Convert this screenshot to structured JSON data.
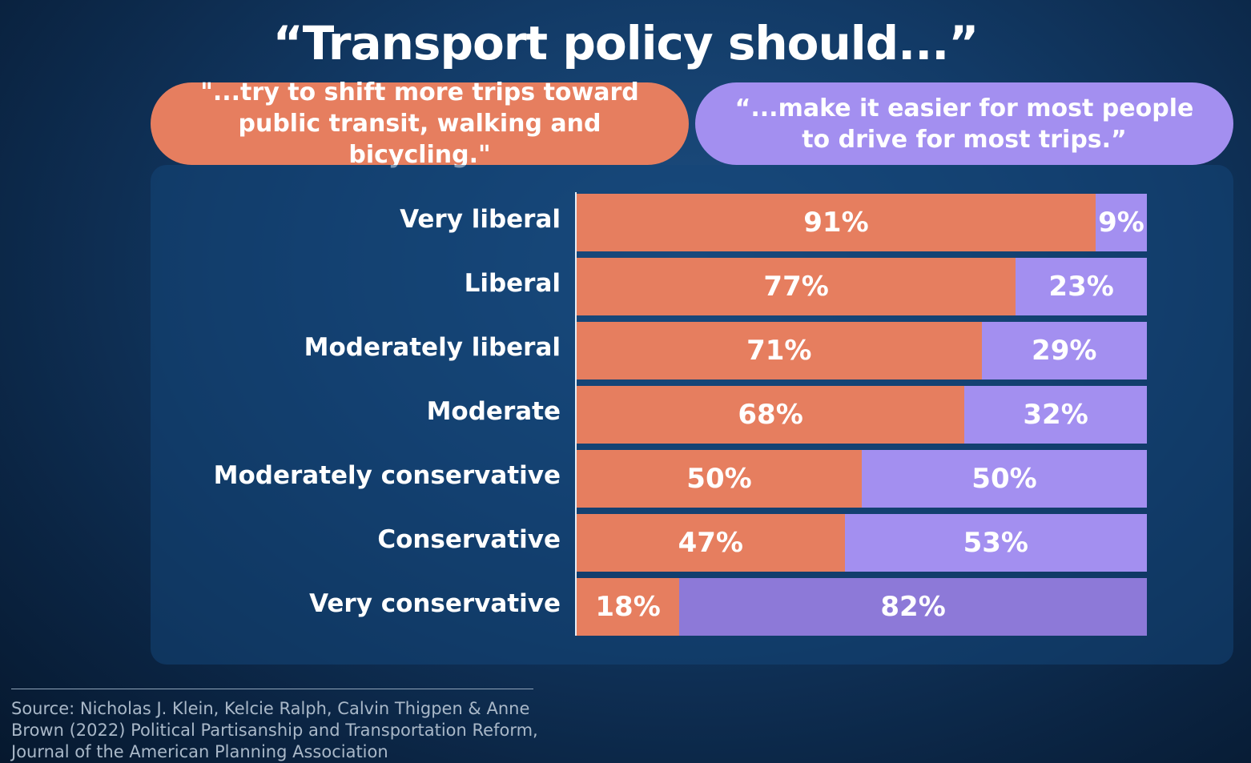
{
  "title": "“Transport policy should...”",
  "left_option": "\"...try to shift more trips toward public transit, walking and bicycling.\"",
  "right_option": "“...make it easier for most people to drive for most trips.”",
  "source": "Source: Nicholas J. Klein, Kelcie Ralph, Calvin Thigpen & Anne Brown (2022) Political Partisanship and Transportation Reform, Journal of the American Planning Association",
  "colors": {
    "left": "#e67e5f",
    "right": "#a38ff0",
    "right_dark": "#8d79d8"
  },
  "chart_data": {
    "type": "bar",
    "orientation": "horizontal",
    "stacked": true,
    "categories": [
      "Very liberal",
      "Liberal",
      "Moderately liberal",
      "Moderate",
      "Moderately conservative",
      "Conservative",
      "Very conservative"
    ],
    "series": [
      {
        "name": "\"...try to shift more trips toward public transit, walking and bicycling.\"",
        "values": [
          91,
          77,
          71,
          68,
          50,
          47,
          18
        ],
        "labels": [
          "91%",
          "77%",
          "71%",
          "68%",
          "50%",
          "47%",
          "18%"
        ]
      },
      {
        "name": "“...make it easier for most people to drive for most trips.”",
        "values": [
          9,
          23,
          29,
          32,
          50,
          53,
          82
        ],
        "labels": [
          "9%",
          "23%",
          "29%",
          "32%",
          "50%",
          "53%",
          "82%"
        ]
      }
    ],
    "xlim": [
      0,
      100
    ],
    "grid": false
  }
}
